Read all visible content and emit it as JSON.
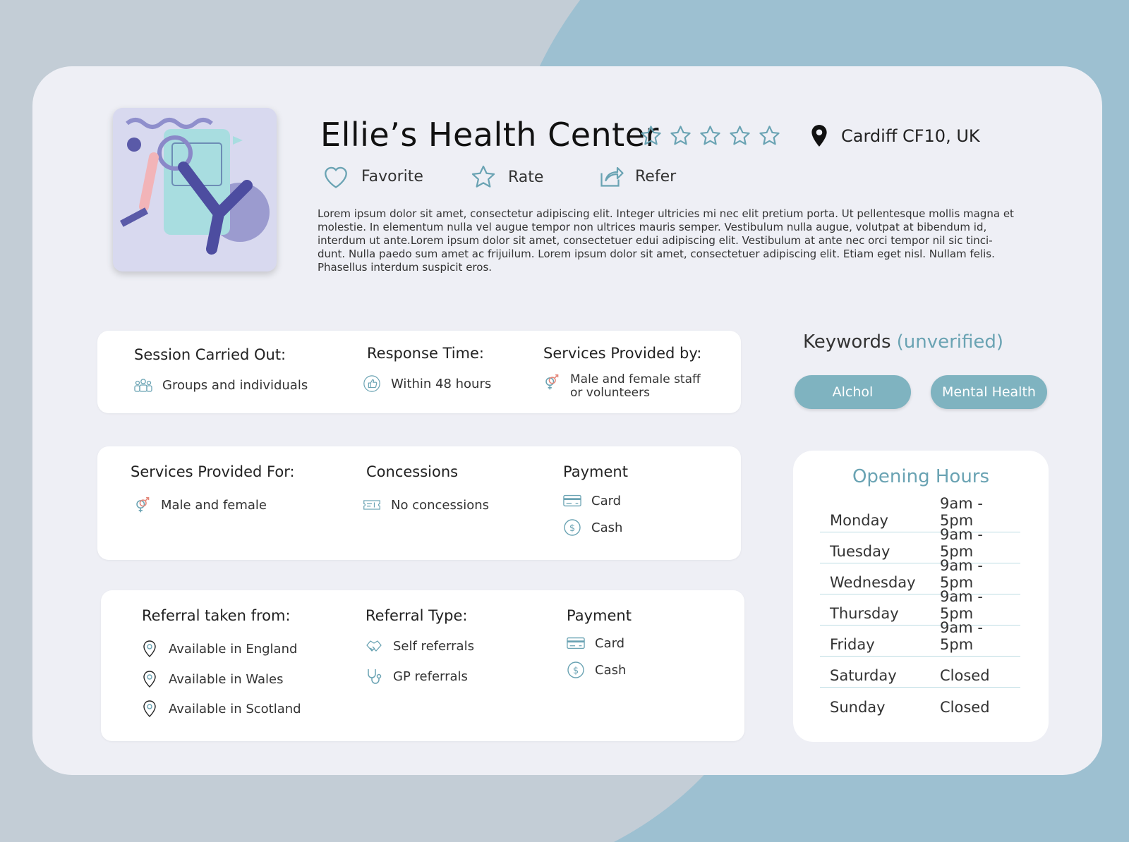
{
  "colors": {
    "accent": "#6aa3b3",
    "pill": "#7fb3c0",
    "background": "#c3cdd6",
    "card": "#eeeff5"
  },
  "header": {
    "title": "Ellie’s Health Center",
    "rating_stars": 5,
    "location": "Cardiff CF10, UK",
    "actions": {
      "favorite": "Favorite",
      "rate": "Rate",
      "refer": "Refer"
    },
    "description": "Lorem ipsum dolor sit amet, consectetur adipiscing elit. Integer ultricies mi nec elit pretium porta. Ut pellentesque mollis magna et molestie. In elementum nulla vel augue tempor non ultrices mauris semper. Vestibulum nulla augue, volutpat at bibendum id, interdum ut ante.Lorem ipsum dolor sit amet, consectetuer edui adipiscing elit. Vestibulum at ante nec orci tempor nil sic tinci-dunt. Nulla paedo sum amet ac frijuilum. Lorem ipsum dolor sit amet, consectetuer adipiscing elit. Etiam eget nisl. Nullam felis. Phasellus interdum suspicit eros."
  },
  "panel1": {
    "session_heading": "Session Carried Out:",
    "session_value": "Groups and individuals",
    "response_heading": "Response Time:",
    "response_value": "Within 48 hours",
    "provided_by_heading": "Services Provided by:",
    "provided_by_line1": "Male and female staff",
    "provided_by_line2": "or volunteers"
  },
  "panel2": {
    "provided_for_heading": "Services Provided For:",
    "provided_for_value": "Male and female",
    "concessions_heading": "Concessions",
    "concessions_value": "No concessions",
    "payment_heading": "Payment",
    "payment_card": "Card",
    "payment_cash": "Cash"
  },
  "panel3": {
    "referral_from_heading": "Referral taken from:",
    "referral_from": [
      "Available in England",
      "Available in Wales",
      "Available in Scotland"
    ],
    "referral_type_heading": "Referral Type:",
    "referral_self": "Self referrals",
    "referral_gp": "GP referrals",
    "payment_heading": "Payment",
    "payment_card": "Card",
    "payment_cash": "Cash"
  },
  "keywords": {
    "title": "Keywords",
    "status": "(unverified)",
    "tags": [
      "Alchol",
      "Mental Health"
    ]
  },
  "opening_hours": {
    "title": "Opening Hours",
    "rows": [
      {
        "day": "Monday",
        "time": "9am - 5pm"
      },
      {
        "day": "Tuesday",
        "time": "9am - 5pm"
      },
      {
        "day": "Wednesday",
        "time": "9am - 5pm"
      },
      {
        "day": "Thursday",
        "time": "9am - 5pm"
      },
      {
        "day": "Friday",
        "time": "9am - 5pm"
      },
      {
        "day": "Saturday",
        "time": "Closed"
      },
      {
        "day": "Sunday",
        "time": "Closed"
      }
    ]
  }
}
